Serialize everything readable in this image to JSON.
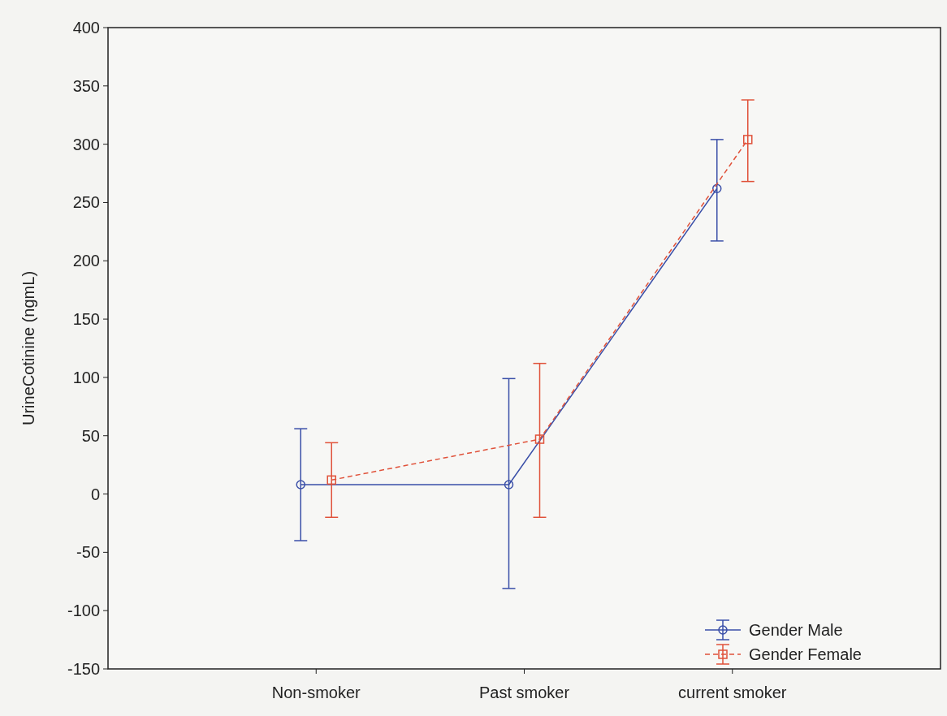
{
  "chart_data": {
    "type": "line",
    "ylabel": "UrineCotinine (ngmL)",
    "categories": [
      "Non-smoker",
      "Past smoker",
      "current smoker"
    ],
    "series": [
      {
        "name": "Gender Male",
        "color": "#3a4fa8",
        "values": [
          8,
          8,
          262
        ],
        "errors": [
          [
            -40,
            56
          ],
          [
            -81,
            99
          ],
          [
            217,
            304
          ]
        ],
        "marker": "circle",
        "line_style": "solid"
      },
      {
        "name": "Gender Female",
        "color": "#e0523a",
        "values": [
          12,
          47,
          304
        ],
        "errors": [
          [
            -20,
            44
          ],
          [
            -20,
            112
          ],
          [
            268,
            338
          ]
        ],
        "marker": "square",
        "line_style": "dashed"
      }
    ],
    "ylim": [
      -150,
      400
    ],
    "yticks": [
      -150,
      -100,
      -50,
      0,
      50,
      100,
      150,
      200,
      250,
      300,
      350,
      400
    ],
    "legend": "bottom right",
    "grid": false
  }
}
